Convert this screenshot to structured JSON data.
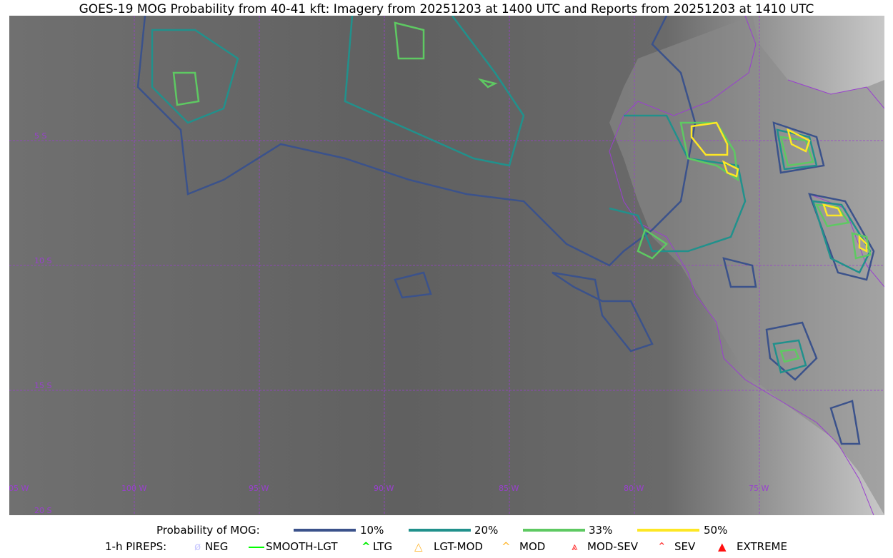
{
  "title": "GOES-19 MOG Probability from 40-41 kft: Imagery from 20251203 at 1400 UTC and Reports from 20251203 at 1410 UTC",
  "map": {
    "lon_labels": [
      "105 W",
      "100 W",
      "95 W",
      "90 W",
      "85 W",
      "80 W",
      "75 W"
    ],
    "lat_labels": [
      "5 S",
      "10 S",
      "15 S",
      "20 S"
    ],
    "grid_color": "#9a3fd0",
    "coast_color": "#9a3fd0"
  },
  "legend": {
    "probability": {
      "label": "Probability of MOG:",
      "levels": [
        {
          "label": "10%",
          "color": "#3b528b"
        },
        {
          "label": "20%",
          "color": "#21918c"
        },
        {
          "label": "33%",
          "color": "#5ec962"
        },
        {
          "label": "50%",
          "color": "#fde725"
        }
      ]
    },
    "pireps": {
      "label": "1-h PIREPS:",
      "items": [
        {
          "label": "NEG",
          "color": "#c8c8ff",
          "icon": "neg-icon"
        },
        {
          "label": "SMOOTH-LGT",
          "color": "#00ff00",
          "icon": "smooth-lgt-icon"
        },
        {
          "label": "LTG",
          "color": "#00ee00",
          "icon": "ltg-icon"
        },
        {
          "label": "LGT-MOD",
          "color": "#ffb428",
          "icon": "lgt-mod-icon"
        },
        {
          "label": "MOD",
          "color": "#ffb428",
          "icon": "mod-icon"
        },
        {
          "label": "MOD-SEV",
          "color": "#ff3030",
          "icon": "mod-sev-icon"
        },
        {
          "label": "SEV",
          "color": "#ff3030",
          "icon": "sev-icon"
        },
        {
          "label": "EXTREME",
          "color": "#ff1010",
          "icon": "extreme-icon"
        }
      ]
    }
  }
}
